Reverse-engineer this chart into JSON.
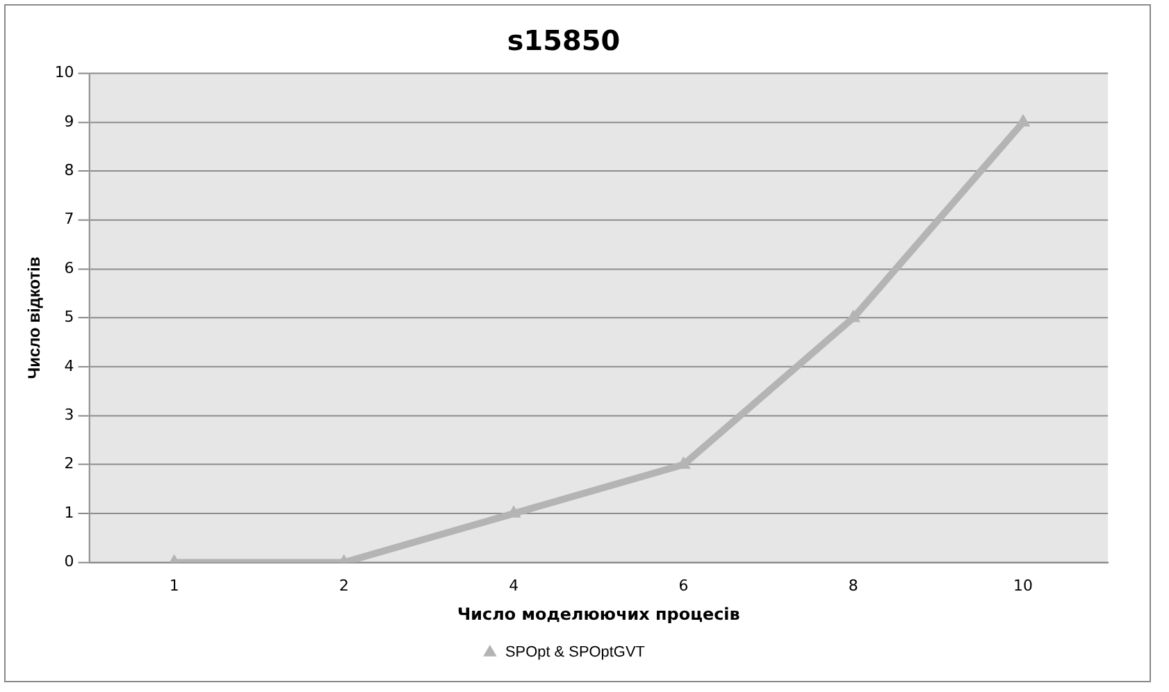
{
  "chart_data": {
    "type": "line",
    "title": "s15850",
    "xlabel": "Число моделюючих процесів",
    "ylabel": "Число відкотів",
    "categories": [
      "1",
      "2",
      "4",
      "6",
      "8",
      "10"
    ],
    "series": [
      {
        "name": "SPOpt & SPOptGVT",
        "color": "#b4b4b4",
        "values": [
          0,
          0,
          1,
          2,
          5,
          9
        ]
      }
    ],
    "ylim": [
      0,
      10
    ],
    "yticks": [
      0,
      1,
      2,
      3,
      4,
      5,
      6,
      7,
      8,
      9,
      10
    ],
    "grid": "y",
    "legend": "bottom",
    "marker": "triangle",
    "line_style": "solid"
  }
}
